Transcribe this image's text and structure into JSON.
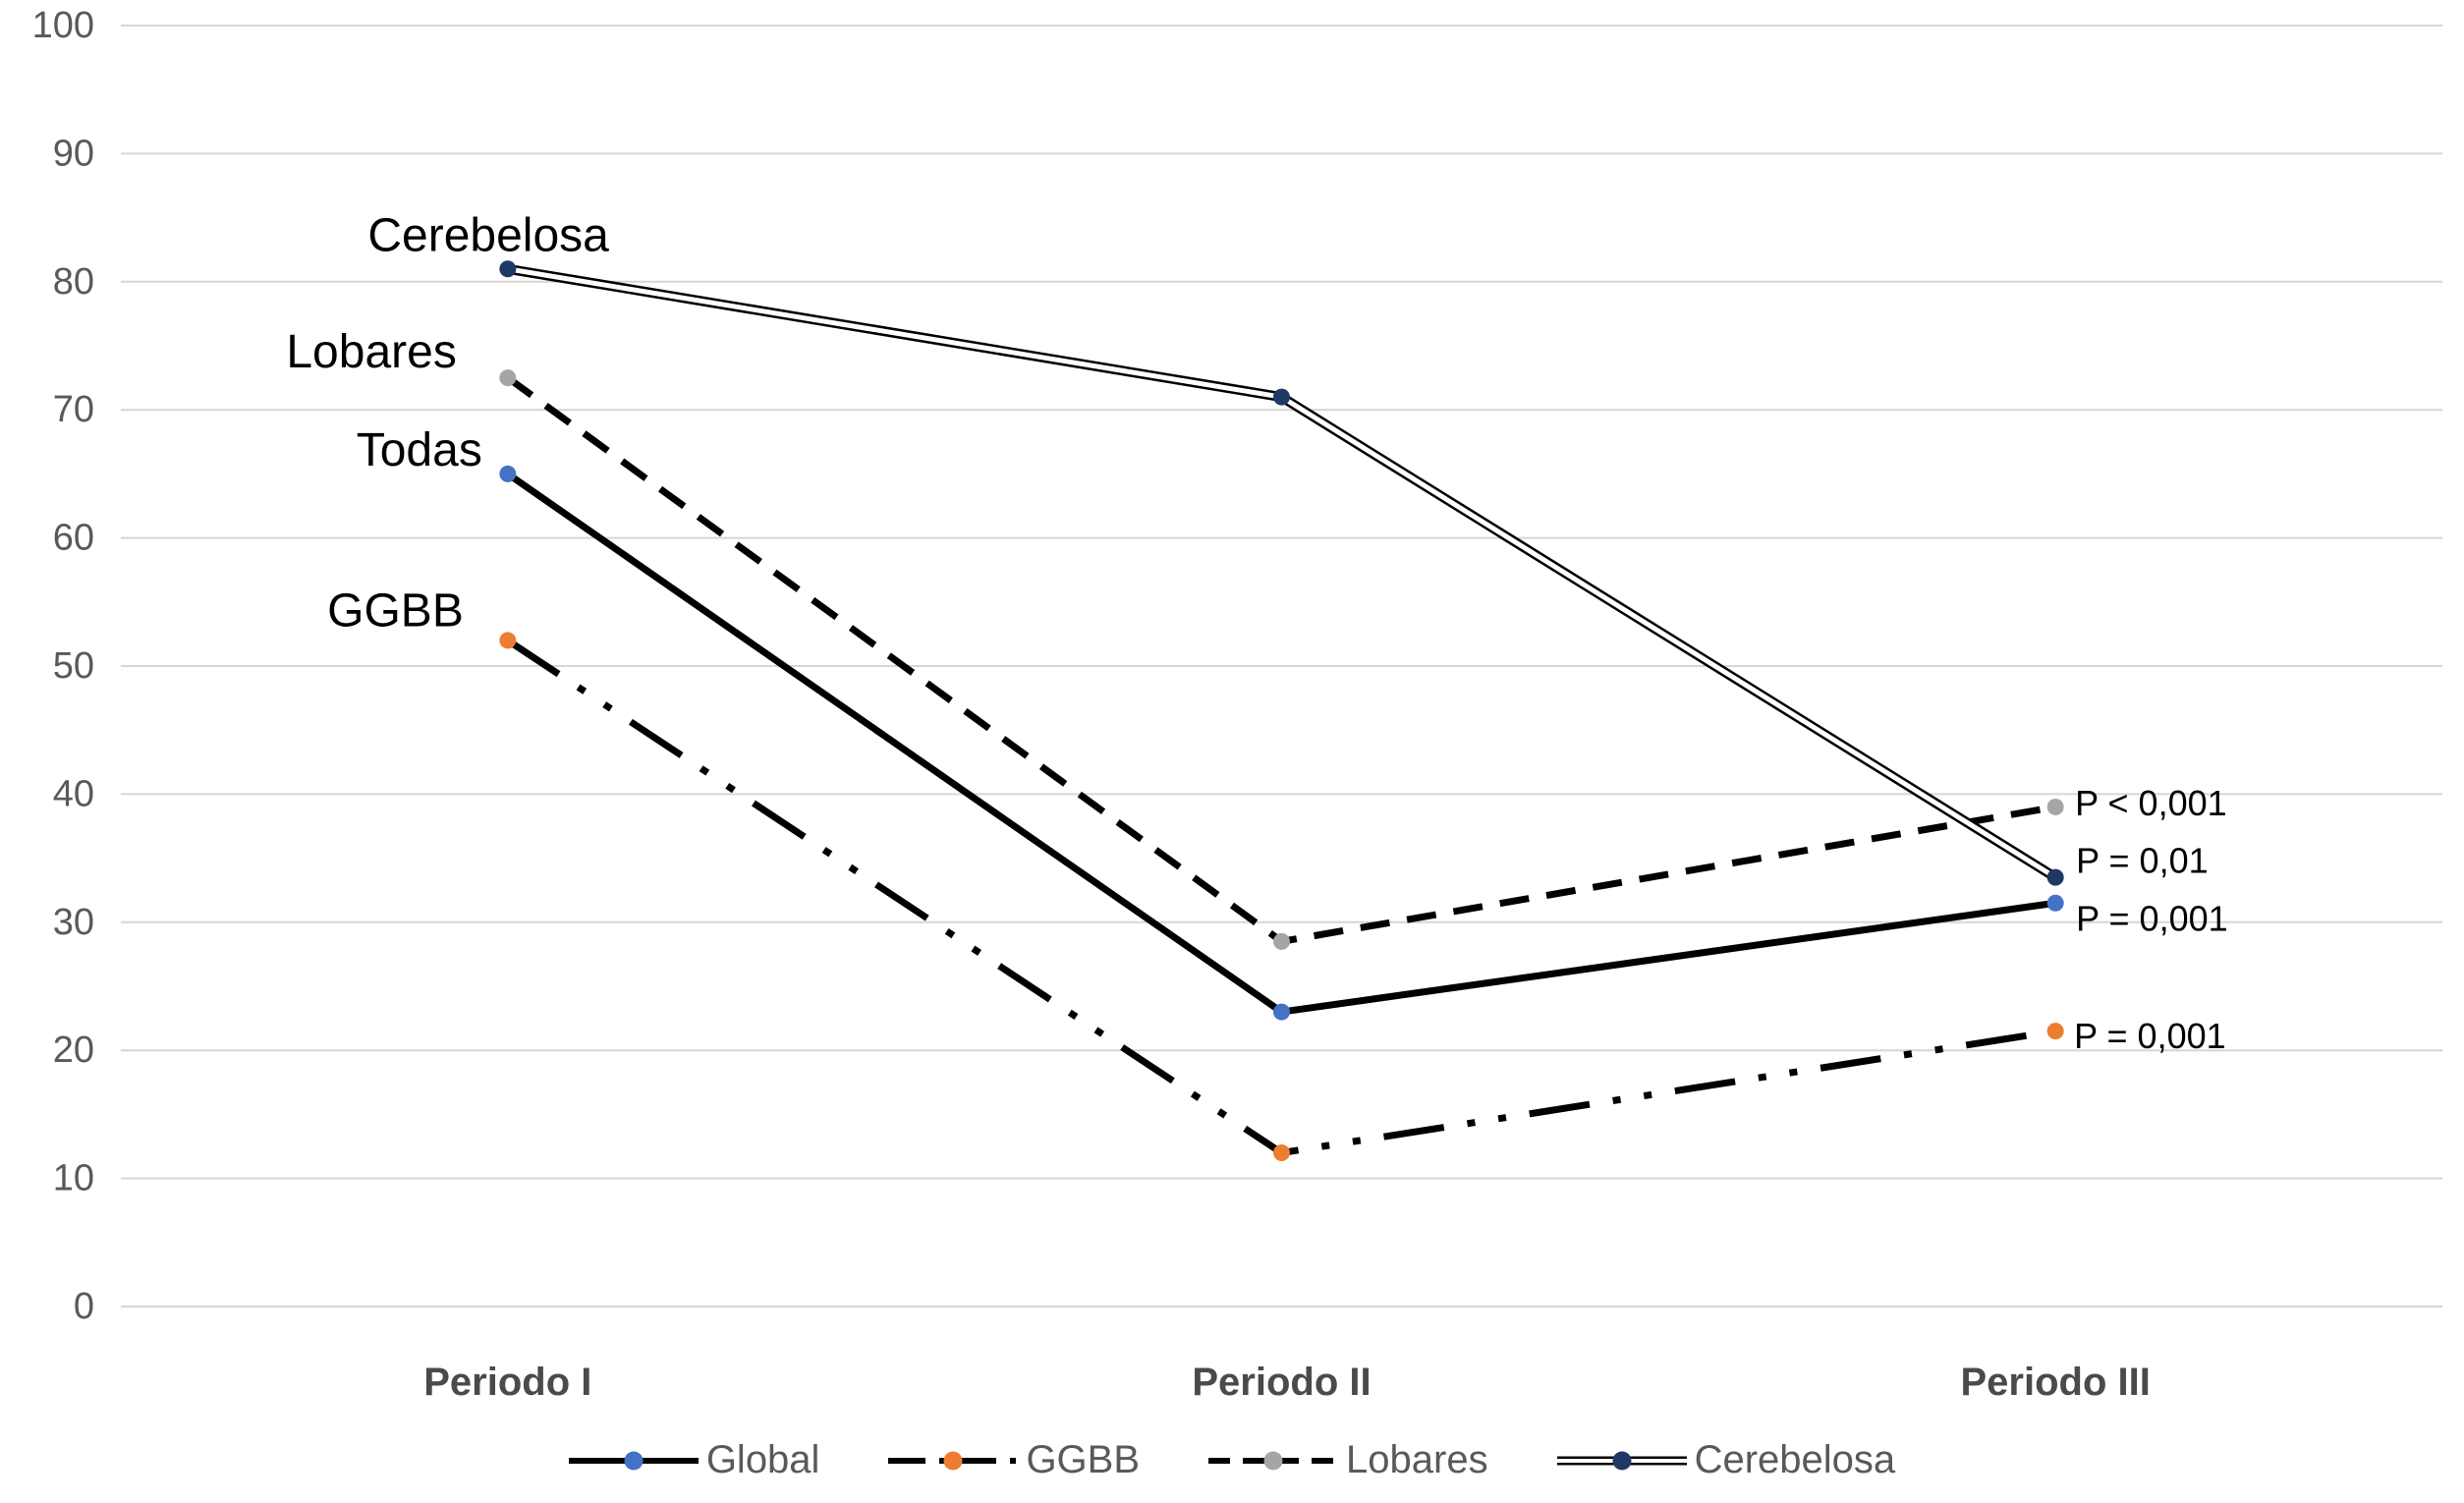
{
  "chart_data": {
    "type": "line",
    "title": "",
    "xlabel": "",
    "ylabel": "",
    "categories": [
      "Periodo I",
      "Periodo II",
      "Periodo III"
    ],
    "yticks": [
      0,
      10,
      20,
      30,
      40,
      50,
      60,
      70,
      80,
      90,
      100
    ],
    "ylim": [
      0,
      100
    ],
    "grid": true,
    "legend_position": "bottom",
    "series": [
      {
        "name": "Global",
        "values": [
          65,
          23,
          31.5
        ],
        "marker_color": "#4472C4",
        "line_color": "#000000",
        "line_style": "solid",
        "point_label": "Todas",
        "p_label": "P = 0,001"
      },
      {
        "name": "GGBB",
        "values": [
          52,
          12,
          21.5
        ],
        "marker_color": "#ED7D31",
        "line_color": "#000000",
        "line_style": "dash-dot-dot",
        "point_label": "GGBB",
        "p_label": "P = 0,001"
      },
      {
        "name": "Lobares",
        "values": [
          72.5,
          28.5,
          39
        ],
        "marker_color": "#A5A5A5",
        "line_color": "#000000",
        "line_style": "dashed",
        "point_label": "Lobares",
        "p_label": "P < 0,001"
      },
      {
        "name": "Cerebelosa",
        "values": [
          81,
          71,
          33.5
        ],
        "marker_color": "#1F3864",
        "line_color": "#000000",
        "line_style": "double",
        "point_label": "Cerebelosa",
        "p_label": "P = 0,01"
      }
    ],
    "colors": {
      "gridline": "#D6D6D6",
      "axis_text": "#595959",
      "category_text": "#4A4A4A",
      "annotation_text": "#000000"
    }
  }
}
